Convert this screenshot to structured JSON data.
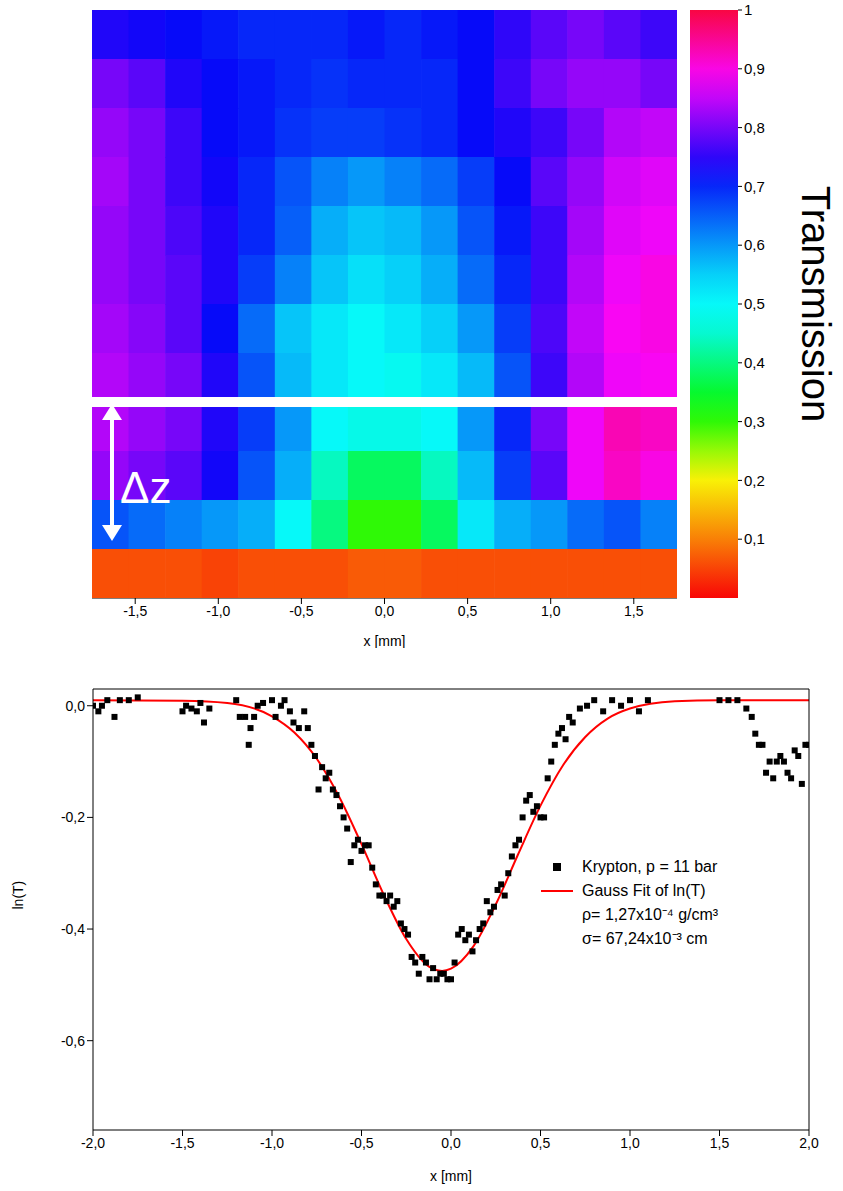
{
  "chart_data": [
    {
      "type": "heatmap",
      "x_label": "x [mm]",
      "tick_labels": "x",
      "xlim": [
        -1.76,
        1.76
      ],
      "xticks": [
        {
          "value": -1.5,
          "label": "-1,5"
        },
        {
          "value": -1,
          "label": "-1,0"
        },
        {
          "value": -0.5,
          "label": "-0,5"
        },
        {
          "value": 0,
          "label": "0,0"
        },
        {
          "value": 0.5,
          "label": "0,5"
        },
        {
          "value": 1,
          "label": "1,0"
        },
        {
          "value": 1.5,
          "label": "1,5"
        }
      ],
      "cells": [
        [
          0.74,
          0.73,
          0.72,
          0.71,
          0.7,
          0.7,
          0.7,
          0.71,
          0.7,
          0.71,
          0.72,
          0.75,
          0.78,
          0.8,
          0.78,
          0.76
        ],
        [
          0.8,
          0.78,
          0.74,
          0.72,
          0.71,
          0.7,
          0.69,
          0.7,
          0.7,
          0.7,
          0.72,
          0.76,
          0.8,
          0.82,
          0.82,
          0.8
        ],
        [
          0.82,
          0.8,
          0.76,
          0.72,
          0.71,
          0.69,
          0.68,
          0.68,
          0.69,
          0.7,
          0.72,
          0.74,
          0.76,
          0.8,
          0.84,
          0.85
        ],
        [
          0.83,
          0.8,
          0.76,
          0.73,
          0.7,
          0.66,
          0.62,
          0.6,
          0.62,
          0.64,
          0.68,
          0.72,
          0.78,
          0.82,
          0.86,
          0.87
        ],
        [
          0.82,
          0.8,
          0.77,
          0.74,
          0.7,
          0.65,
          0.58,
          0.56,
          0.57,
          0.6,
          0.66,
          0.71,
          0.76,
          0.83,
          0.87,
          0.88
        ],
        [
          0.82,
          0.8,
          0.78,
          0.74,
          0.68,
          0.62,
          0.56,
          0.53,
          0.55,
          0.58,
          0.64,
          0.7,
          0.76,
          0.84,
          0.88,
          0.9
        ],
        [
          0.83,
          0.81,
          0.78,
          0.72,
          0.64,
          0.56,
          0.52,
          0.5,
          0.52,
          0.55,
          0.6,
          0.68,
          0.77,
          0.85,
          0.89,
          0.9
        ],
        [
          0.84,
          0.82,
          0.8,
          0.74,
          0.66,
          0.57,
          0.52,
          0.5,
          0.49,
          0.52,
          0.57,
          0.66,
          0.76,
          0.84,
          0.88,
          0.89
        ],
        [
          0.84,
          0.82,
          0.8,
          0.74,
          0.68,
          0.6,
          0.5,
          0.48,
          0.48,
          0.5,
          0.6,
          0.7,
          0.8,
          0.88,
          0.93,
          0.92
        ],
        [
          0.82,
          0.8,
          0.78,
          0.73,
          0.66,
          0.58,
          0.44,
          0.38,
          0.38,
          0.44,
          0.57,
          0.68,
          0.78,
          0.88,
          0.92,
          0.9
        ],
        [
          0.66,
          0.64,
          0.62,
          0.6,
          0.58,
          0.5,
          0.4,
          0.3,
          0.3,
          0.38,
          0.52,
          0.58,
          0.6,
          0.64,
          0.66,
          0.62
        ],
        [
          0.06,
          0.06,
          0.06,
          0.05,
          0.06,
          0.06,
          0.06,
          0.07,
          0.07,
          0.06,
          0.06,
          0.06,
          0.06,
          0.06,
          0.06,
          0.06
        ]
      ],
      "color_range": [
        0,
        1
      ],
      "color_ticks": [
        {
          "value": 0.1,
          "label": "0,1"
        },
        {
          "value": 0.2,
          "label": "0,2"
        },
        {
          "value": 0.3,
          "label": "0,3"
        },
        {
          "value": 0.4,
          "label": "0,4"
        },
        {
          "value": 0.5,
          "label": "0,5"
        },
        {
          "value": 0.6,
          "label": "0,6"
        },
        {
          "value": 0.7,
          "label": "0,7"
        },
        {
          "value": 0.8,
          "label": "0,8"
        },
        {
          "value": 0.9,
          "label": "0,9"
        },
        1
      ],
      "color_label": "Transmission",
      "annotations": [
        "Δz"
      ]
    },
    {
      "type": "scatter",
      "x_label": "x [mm]",
      "y_label": "ln(T)",
      "legend": "right",
      "xlim": [
        -2,
        2
      ],
      "xticks": [
        {
          "value": -2,
          "label": "-2,0"
        },
        {
          "value": -1.5,
          "label": "-1,5"
        },
        {
          "value": -1,
          "label": "-1,0"
        },
        {
          "value": -0.5,
          "label": "-0,5"
        },
        {
          "value": 0,
          "label": "0,0"
        },
        {
          "value": 0.5,
          "label": "0,5"
        },
        {
          "value": 1,
          "label": "1,0"
        },
        {
          "value": 1.5,
          "label": "1,5"
        },
        {
          "value": 2,
          "label": "2,0"
        }
      ],
      "ylim": [
        -0.76,
        0.03
      ],
      "yticks": [
        {
          "value": -0.6,
          "label": "-0,6"
        },
        {
          "value": -0.4,
          "label": "-0,4"
        },
        {
          "value": -0.2,
          "label": "-0,2"
        },
        {
          "value": 0,
          "label": "0,0"
        }
      ],
      "series": [
        {
          "name": "Krypton, p = 11 bar",
          "type": "scatter",
          "marker": "square",
          "color": "#000000",
          "x": [
            -2.0,
            -1.97,
            -1.95,
            -1.92,
            -1.88,
            -1.85,
            -1.8,
            -1.75,
            -1.5,
            -1.48,
            -1.45,
            -1.42,
            -1.4,
            -1.38,
            -1.35,
            -1.2,
            -1.18,
            -1.15,
            -1.13,
            -1.12,
            -1.1,
            -1.08,
            -1.05,
            -1.0,
            -0.98,
            -0.95,
            -0.93,
            -0.9,
            -0.88,
            -0.85,
            -0.82,
            -0.8,
            -0.78,
            -0.76,
            -0.74,
            -0.72,
            -0.7,
            -0.68,
            -0.66,
            -0.64,
            -0.62,
            -0.6,
            -0.58,
            -0.56,
            -0.54,
            -0.52,
            -0.5,
            -0.48,
            -0.46,
            -0.44,
            -0.42,
            -0.4,
            -0.38,
            -0.36,
            -0.34,
            -0.32,
            -0.3,
            -0.28,
            -0.26,
            -0.24,
            -0.22,
            -0.2,
            -0.18,
            -0.16,
            -0.14,
            -0.12,
            -0.1,
            -0.08,
            -0.06,
            -0.04,
            -0.02,
            0.0,
            0.02,
            0.04,
            0.06,
            0.08,
            0.1,
            0.12,
            0.14,
            0.16,
            0.18,
            0.2,
            0.22,
            0.24,
            0.26,
            0.28,
            0.3,
            0.32,
            0.34,
            0.36,
            0.38,
            0.4,
            0.42,
            0.44,
            0.46,
            0.48,
            0.5,
            0.52,
            0.54,
            0.56,
            0.58,
            0.6,
            0.62,
            0.64,
            0.66,
            0.68,
            0.72,
            0.76,
            0.8,
            0.85,
            0.9,
            0.95,
            1.0,
            1.05,
            1.1,
            1.5,
            1.55,
            1.6,
            1.65,
            1.68,
            1.7,
            1.72,
            1.74,
            1.76,
            1.78,
            1.8,
            1.82,
            1.84,
            1.86,
            1.88,
            1.9,
            1.92,
            1.94,
            1.96,
            1.98,
            2.0
          ],
          "values": [
            0.0,
            -0.01,
            0.0,
            0.01,
            -0.02,
            0.01,
            0.01,
            0.015,
            -0.01,
            0.0,
            -0.005,
            -0.01,
            0.005,
            -0.03,
            -0.005,
            0.01,
            -0.02,
            -0.02,
            -0.07,
            -0.04,
            -0.02,
            0.0,
            0.005,
            0.01,
            -0.02,
            0.0,
            0.01,
            -0.01,
            -0.03,
            -0.04,
            -0.01,
            -0.04,
            -0.07,
            -0.09,
            -0.15,
            -0.11,
            -0.13,
            -0.12,
            -0.15,
            -0.16,
            -0.18,
            -0.2,
            -0.22,
            -0.28,
            -0.25,
            -0.24,
            -0.26,
            -0.25,
            -0.25,
            -0.29,
            -0.32,
            -0.34,
            -0.34,
            -0.35,
            -0.34,
            -0.36,
            -0.35,
            -0.39,
            -0.4,
            -0.41,
            -0.45,
            -0.46,
            -0.48,
            -0.45,
            -0.46,
            -0.49,
            -0.47,
            -0.49,
            -0.48,
            -0.48,
            -0.49,
            -0.49,
            -0.46,
            -0.41,
            -0.4,
            -0.42,
            -0.41,
            -0.44,
            -0.42,
            -0.4,
            -0.39,
            -0.35,
            -0.37,
            -0.36,
            -0.33,
            -0.32,
            -0.34,
            -0.3,
            -0.27,
            -0.25,
            -0.24,
            -0.2,
            -0.17,
            -0.16,
            -0.19,
            -0.18,
            -0.2,
            -0.2,
            -0.13,
            -0.1,
            -0.07,
            -0.05,
            -0.04,
            -0.06,
            -0.02,
            -0.03,
            -0.005,
            0.0,
            0.01,
            -0.01,
            0.01,
            0.0,
            0.01,
            -0.01,
            0.01,
            0.01,
            0.01,
            0.01,
            -0.005,
            -0.02,
            -0.05,
            -0.07,
            -0.07,
            -0.12,
            -0.1,
            -0.13,
            -0.1,
            -0.09,
            -0.1,
            -0.12,
            -0.13,
            -0.08,
            -0.09,
            -0.14,
            -0.07,
            -0.07
          ]
        },
        {
          "name": "Gauss Fit of ln(T)",
          "type": "line",
          "line_style": "solid",
          "color": "#ff0000",
          "x": [
            -2,
            -1.5,
            -1.25,
            -1,
            -0.875,
            -0.75,
            -0.625,
            -0.5,
            -0.375,
            -0.25,
            -0.125,
            -0.05,
            0,
            0.125,
            0.25,
            0.375,
            0.5,
            0.625,
            0.75,
            0.875,
            1,
            1.25,
            1.5,
            2
          ],
          "values": [
            0.01,
            0.009,
            0.005,
            -0.019,
            -0.048,
            -0.095,
            -0.163,
            -0.248,
            -0.339,
            -0.418,
            -0.467,
            -0.475,
            -0.471,
            -0.431,
            -0.356,
            -0.266,
            -0.179,
            -0.107,
            -0.056,
            -0.023,
            -0.005,
            0.008,
            0.01,
            0.01
          ]
        }
      ],
      "annotations": [
        "ρ= 1,27x10⁻⁴ g/cm³",
        "σ= 67,24x10⁻³ cm"
      ]
    }
  ]
}
